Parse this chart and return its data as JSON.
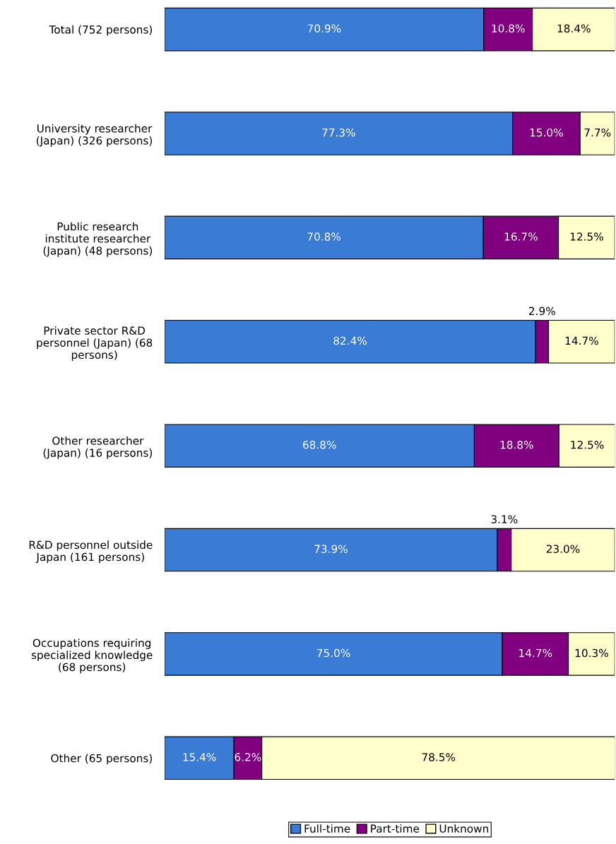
{
  "chart_data": {
    "type": "bar",
    "orientation": "horizontal",
    "stacked": true,
    "categories": [
      "Total (752 persons)",
      "University researcher\n(Japan) (326 persons)",
      "Public research\ninstitute researcher\n(Japan) (48 persons)",
      "Private sector R&D\npersonnel (Japan) (68\npersons)",
      "Other researcher\n(Japan) (16 persons)",
      "R&D personnel outside\nJapan (161 persons)",
      "Occupations requiring\nspecialized knowledge\n(68 persons)",
      "Other (65 persons)"
    ],
    "xlim": [
      0,
      100
    ],
    "tick_labels": "y",
    "grid": false,
    "legend": "bottom",
    "series": [
      {
        "name": "Full-time",
        "color": "#3a7bd5",
        "values": [
          70.9,
          77.3,
          70.8,
          82.4,
          68.8,
          73.9,
          75.0,
          15.4
        ],
        "value_labels": [
          "70.9%",
          "77.3%",
          "70.8%",
          "82.4%",
          "68.8%",
          "73.9%",
          "75.0%",
          "15.4%"
        ]
      },
      {
        "name": "Part-time",
        "color": "#800080",
        "values": [
          10.8,
          15.0,
          16.7,
          2.9,
          18.8,
          3.1,
          14.7,
          6.2
        ],
        "value_labels": [
          "10.8%",
          "15.0%",
          "16.7%",
          "2.9%",
          "18.8%",
          "3.1%",
          "14.7%",
          "6.2%"
        ]
      },
      {
        "name": "Unknown",
        "color": "#ffffcc",
        "values": [
          18.4,
          7.7,
          12.5,
          14.7,
          12.5,
          23.0,
          10.3,
          78.5
        ],
        "value_labels": [
          "18.4%",
          "7.7%",
          "12.5%",
          "14.7%",
          "12.5%",
          "23.0%",
          "10.3%",
          "78.5%"
        ]
      }
    ]
  }
}
